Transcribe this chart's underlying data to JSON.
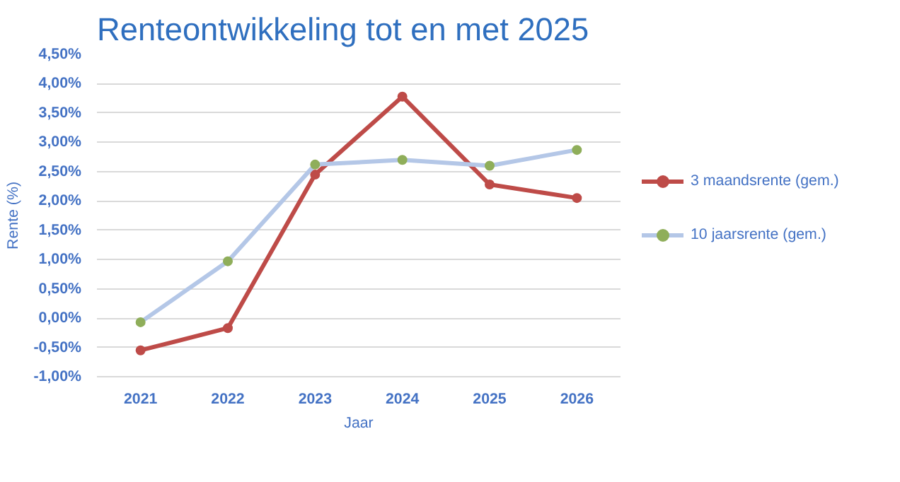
{
  "chart_data": {
    "type": "line",
    "title": "Renteontwikkeling tot en met 2025",
    "xlabel": "Jaar",
    "ylabel": "Rente (%)",
    "categories": [
      "2021",
      "2022",
      "2023",
      "2024",
      "2025",
      "2026"
    ],
    "series": [
      {
        "name": "3 maandsrente (gem.)",
        "color": "#be4b48",
        "values": [
          -0.55,
          -0.17,
          2.45,
          3.78,
          2.28,
          2.05
        ]
      },
      {
        "name": "10 jaarsrente (gem.)",
        "color": "#b4c7e7",
        "colors": [
          "#8fae5a",
          "#8fae5a",
          "#8fae5a",
          "#8fae5a",
          "#8fae5a",
          "#8fae5a"
        ],
        "values": [
          -0.07,
          0.97,
          2.62,
          2.7,
          2.6,
          2.87
        ]
      }
    ],
    "ylim": [
      -1.0,
      4.5
    ],
    "yticks": [
      {
        "value": -1.0,
        "label": "-1,00%"
      },
      {
        "value": -0.5,
        "label": "-0,50%"
      },
      {
        "value": 0,
        "label": "0,00%"
      },
      {
        "value": 0.5,
        "label": "0,50%"
      },
      {
        "value": 1.0,
        "label": "1,00%"
      },
      {
        "value": 1.5,
        "label": "1,50%"
      },
      {
        "value": 2.0,
        "label": "2,00%"
      },
      {
        "value": 2.5,
        "label": "2,50%"
      },
      {
        "value": 3.0,
        "label": "3,00%"
      },
      {
        "value": 3.5,
        "label": "3,50%"
      },
      {
        "value": 4.0,
        "label": "4,00%"
      },
      {
        "value": 4.5,
        "label": "4,50%"
      }
    ],
    "grid": "y",
    "legend": "right",
    "marker": "circle",
    "line_style": "solid"
  }
}
